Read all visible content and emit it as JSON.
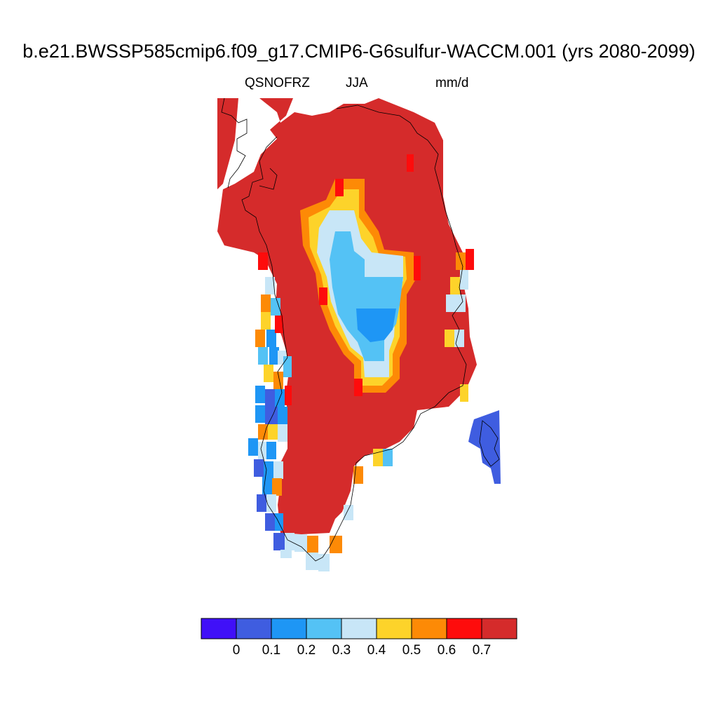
{
  "title": "b.e21.BWSSP585cmip6.f09_g17.CMIP6-G6sulfur-WACCM.001 (yrs 2080-2099)",
  "variable": "QSNOFRZ",
  "season": "JJA",
  "units": "mm/d",
  "colorbar": {
    "colors": [
      "#4010f8",
      "#3f5de0",
      "#1e96f5",
      "#54c2f5",
      "#c8e6f7",
      "#fdd32a",
      "#fd8a06",
      "#fe0c0c",
      "#d52b2b"
    ],
    "labels": [
      "0",
      "0.1",
      "0.2",
      "0.3",
      "0.4",
      "0.5",
      "0.6",
      "0.7"
    ]
  },
  "map_data": {
    "region": "Greenland",
    "dominant_value": ">0.7",
    "interior_minimum_range": "0.2-0.3",
    "southwest_coast_range": "0-0.2",
    "southeast_island_range": "0-0.1"
  }
}
